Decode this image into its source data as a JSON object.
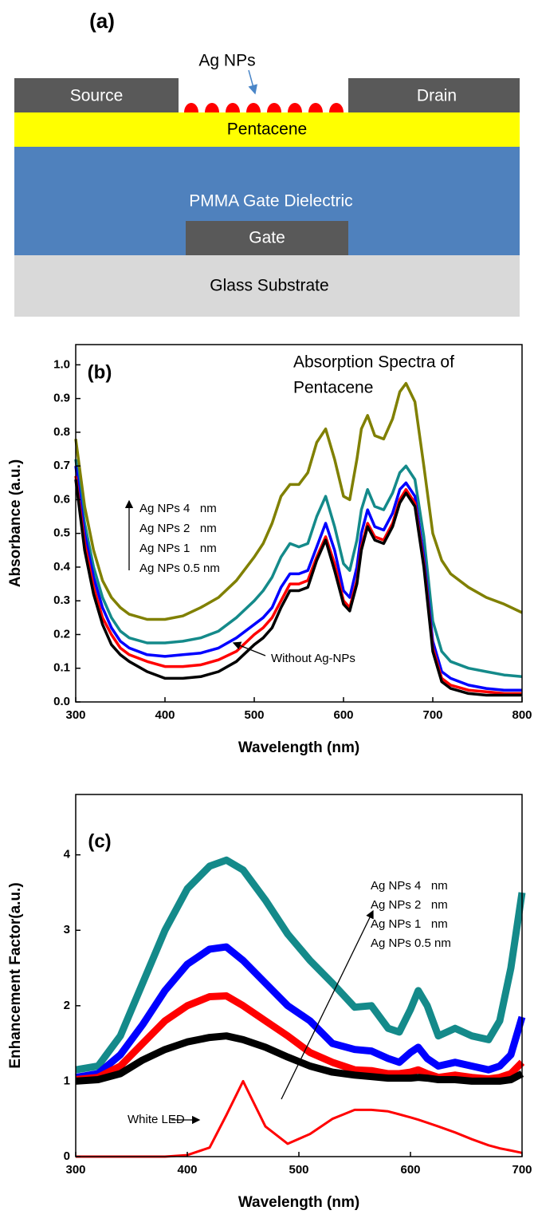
{
  "diagram": {
    "label": "(a)",
    "source": "Source",
    "drain": "Drain",
    "nanoparticles": "Ag NPs",
    "semiconductor": "Pentacene",
    "dielectric": "PMMA Gate Dielectric",
    "gate": "Gate",
    "substrate": "Glass Substrate"
  },
  "chart_data": [
    {
      "type": "line",
      "panel": "(b)",
      "title_lines": [
        "Absorption Spectra of",
        "Pentacene"
      ],
      "x_label": "Wavelength (nm)",
      "y_label": "Absorbance (a.u.)",
      "xlim": [
        300,
        800
      ],
      "xticks": [
        300,
        400,
        500,
        600,
        700,
        800
      ],
      "ylim": [
        0,
        1.06
      ],
      "yticks": [
        {
          "value": 0,
          "label": "0.0"
        },
        0.1,
        0.2,
        0.3,
        0.4,
        0.5,
        0.6,
        0.7,
        0.8,
        0.9,
        {
          "value": 1,
          "label": "1.0"
        }
      ],
      "x": [
        300,
        310,
        320,
        330,
        340,
        350,
        360,
        380,
        400,
        420,
        440,
        460,
        480,
        500,
        510,
        520,
        530,
        540,
        550,
        560,
        570,
        580,
        590,
        600,
        607,
        615,
        620,
        627,
        635,
        645,
        655,
        663,
        670,
        680,
        690,
        700,
        710,
        720,
        740,
        760,
        780,
        800
      ],
      "series": [
        {
          "name": "Ag NPs 4   nm",
          "color": "#808000",
          "values": [
            0.78,
            0.58,
            0.45,
            0.36,
            0.31,
            0.28,
            0.26,
            0.245,
            0.245,
            0.255,
            0.28,
            0.31,
            0.36,
            0.43,
            0.47,
            0.53,
            0.61,
            0.645,
            0.645,
            0.68,
            0.77,
            0.81,
            0.72,
            0.61,
            0.6,
            0.72,
            0.81,
            0.85,
            0.79,
            0.78,
            0.84,
            0.92,
            0.945,
            0.89,
            0.7,
            0.5,
            0.42,
            0.38,
            0.34,
            0.31,
            0.29,
            0.265
          ]
        },
        {
          "name": "Ag NPs 2   nm",
          "color": "#148a8a",
          "values": [
            0.72,
            0.53,
            0.4,
            0.31,
            0.25,
            0.21,
            0.19,
            0.175,
            0.175,
            0.18,
            0.19,
            0.21,
            0.25,
            0.3,
            0.33,
            0.37,
            0.43,
            0.47,
            0.46,
            0.47,
            0.55,
            0.61,
            0.52,
            0.41,
            0.39,
            0.48,
            0.57,
            0.63,
            0.58,
            0.57,
            0.62,
            0.68,
            0.7,
            0.66,
            0.49,
            0.24,
            0.15,
            0.12,
            0.1,
            0.09,
            0.08,
            0.075
          ]
        },
        {
          "name": "Ag NPs 1   nm",
          "color": "#0000ff",
          "values": [
            0.7,
            0.5,
            0.37,
            0.28,
            0.22,
            0.18,
            0.16,
            0.14,
            0.135,
            0.14,
            0.145,
            0.16,
            0.19,
            0.23,
            0.25,
            0.28,
            0.34,
            0.38,
            0.38,
            0.39,
            0.46,
            0.53,
            0.45,
            0.33,
            0.31,
            0.4,
            0.5,
            0.57,
            0.52,
            0.51,
            0.56,
            0.63,
            0.65,
            0.61,
            0.43,
            0.18,
            0.09,
            0.07,
            0.05,
            0.04,
            0.035,
            0.035
          ]
        },
        {
          "name": "Ag NPs 0.5 nm",
          "color": "#ff0000",
          "values": [
            0.67,
            0.47,
            0.34,
            0.25,
            0.2,
            0.16,
            0.14,
            0.12,
            0.105,
            0.105,
            0.11,
            0.125,
            0.15,
            0.2,
            0.22,
            0.25,
            0.3,
            0.35,
            0.35,
            0.36,
            0.43,
            0.49,
            0.41,
            0.3,
            0.28,
            0.36,
            0.46,
            0.53,
            0.49,
            0.48,
            0.53,
            0.6,
            0.63,
            0.59,
            0.41,
            0.16,
            0.07,
            0.05,
            0.035,
            0.03,
            0.025,
            0.025
          ]
        },
        {
          "name": "Without Ag-NPs",
          "color": "#000000",
          "values": [
            0.66,
            0.45,
            0.32,
            0.23,
            0.17,
            0.14,
            0.12,
            0.09,
            0.07,
            0.07,
            0.075,
            0.09,
            0.12,
            0.17,
            0.19,
            0.22,
            0.28,
            0.33,
            0.33,
            0.34,
            0.42,
            0.48,
            0.39,
            0.29,
            0.27,
            0.35,
            0.45,
            0.52,
            0.48,
            0.47,
            0.52,
            0.59,
            0.62,
            0.58,
            0.4,
            0.15,
            0.06,
            0.04,
            0.025,
            0.02,
            0.02,
            0.02
          ]
        }
      ]
    },
    {
      "type": "line",
      "panel": "(c)",
      "x_label": "Wavelength (nm)",
      "y_label": "Enhancement Factor(a.u.)",
      "xlim": [
        300,
        700
      ],
      "xticks": [
        300,
        400,
        500,
        600,
        700
      ],
      "ylim": [
        0,
        4.8
      ],
      "yticks": [
        0,
        1,
        2,
        3,
        4
      ],
      "x": [
        300,
        320,
        340,
        360,
        380,
        400,
        420,
        435,
        450,
        470,
        490,
        510,
        530,
        550,
        565,
        580,
        590,
        600,
        607,
        615,
        625,
        640,
        655,
        670,
        680,
        690,
        700
      ],
      "series": [
        {
          "name": "Ag NPs 4   nm",
          "color": "#148a8a",
          "values": [
            1.15,
            1.2,
            1.6,
            2.3,
            3.0,
            3.55,
            3.85,
            3.93,
            3.8,
            3.4,
            2.95,
            2.6,
            2.3,
            1.98,
            2.0,
            1.7,
            1.65,
            1.95,
            2.2,
            2.0,
            1.6,
            1.7,
            1.6,
            1.55,
            1.8,
            2.5,
            3.5
          ]
        },
        {
          "name": "Ag NPs 2   nm",
          "color": "#0000ff",
          "values": [
            1.05,
            1.1,
            1.35,
            1.75,
            2.2,
            2.55,
            2.75,
            2.78,
            2.6,
            2.3,
            2.0,
            1.8,
            1.5,
            1.42,
            1.4,
            1.3,
            1.25,
            1.38,
            1.45,
            1.3,
            1.2,
            1.25,
            1.2,
            1.15,
            1.2,
            1.35,
            1.85
          ]
        },
        {
          "name": "Ag NPs 1   nm",
          "color": "#ff0000",
          "values": [
            1.02,
            1.05,
            1.2,
            1.5,
            1.8,
            2.0,
            2.12,
            2.13,
            2.0,
            1.8,
            1.6,
            1.38,
            1.25,
            1.15,
            1.14,
            1.1,
            1.1,
            1.12,
            1.15,
            1.1,
            1.05,
            1.08,
            1.05,
            1.03,
            1.05,
            1.1,
            1.25
          ]
        },
        {
          "name": "Ag NPs 0.5 nm",
          "color": "#000000",
          "values": [
            1.0,
            1.02,
            1.1,
            1.28,
            1.42,
            1.52,
            1.58,
            1.6,
            1.55,
            1.45,
            1.32,
            1.2,
            1.12,
            1.08,
            1.06,
            1.04,
            1.04,
            1.04,
            1.05,
            1.04,
            1.02,
            1.02,
            1.0,
            1.0,
            1.0,
            1.02,
            1.1
          ]
        },
        {
          "name": "White LED",
          "color": "#ff0000",
          "values": [
            0,
            0,
            0,
            0,
            0,
            0.02,
            0.12,
            0.55,
            1.0,
            0.4,
            0.17,
            0.3,
            0.5,
            0.62,
            0.62,
            0.6,
            0.56,
            0.52,
            0.49,
            0.45,
            0.4,
            0.32,
            0.23,
            0.15,
            0.11,
            0.08,
            0.05
          ]
        }
      ]
    }
  ]
}
